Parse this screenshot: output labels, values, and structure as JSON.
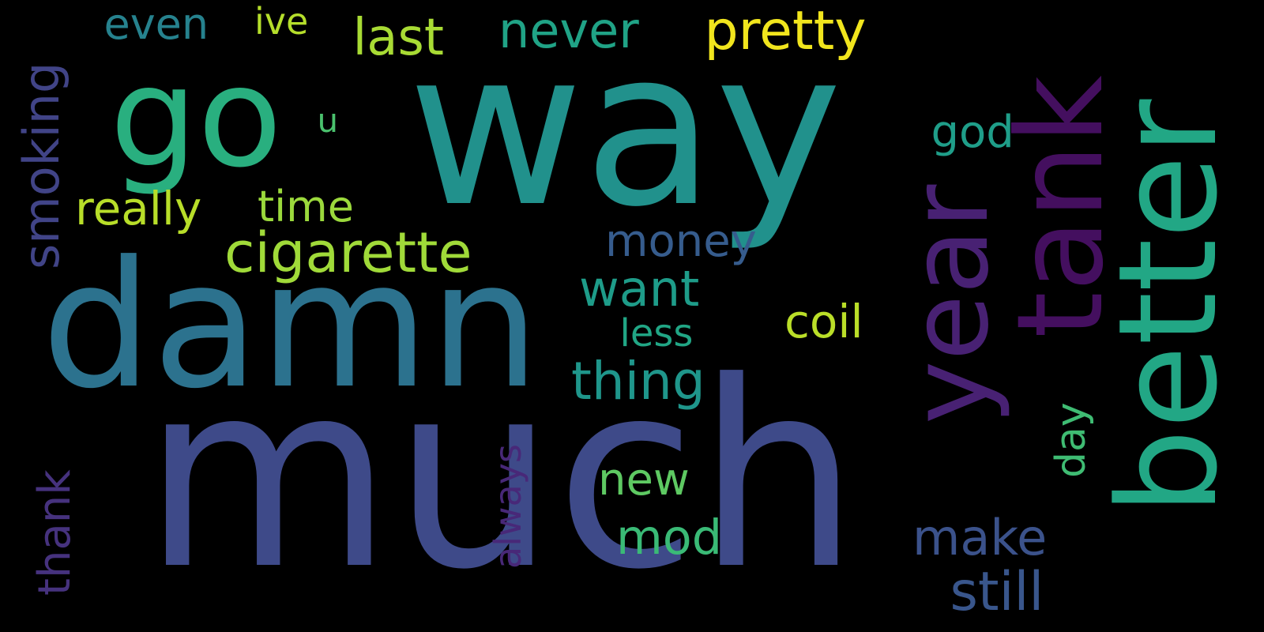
{
  "words": [
    {
      "text": "way",
      "color": "#21918c",
      "vertical": false
    },
    {
      "text": "much",
      "color": "#3e4a89",
      "vertical": false
    },
    {
      "text": "damn",
      "color": "#2c728e",
      "vertical": false
    },
    {
      "text": "go",
      "color": "#29af7f",
      "vertical": false
    },
    {
      "text": "better",
      "color": "#22a785",
      "vertical": true
    },
    {
      "text": "tank",
      "color": "#440f5f",
      "vertical": true
    },
    {
      "text": "year",
      "color": "#482173",
      "vertical": true
    },
    {
      "text": "cigarette",
      "color": "#a0da39",
      "vertical": false
    },
    {
      "text": "pretty",
      "color": "#f1e51d",
      "vertical": false
    },
    {
      "text": "never",
      "color": "#20a386",
      "vertical": false
    },
    {
      "text": "last",
      "color": "#a8db34",
      "vertical": false
    },
    {
      "text": "even",
      "color": "#26828e",
      "vertical": false
    },
    {
      "text": "ive",
      "color": "#b5de2b",
      "vertical": false
    },
    {
      "text": "smoking",
      "color": "#414487",
      "vertical": true
    },
    {
      "text": "u",
      "color": "#4ac16d",
      "vertical": false
    },
    {
      "text": "really",
      "color": "#b8de29",
      "vertical": false
    },
    {
      "text": "time",
      "color": "#9bd93c",
      "vertical": false
    },
    {
      "text": "god",
      "color": "#1f9e89",
      "vertical": false
    },
    {
      "text": "money",
      "color": "#365c8d",
      "vertical": false
    },
    {
      "text": "want",
      "color": "#1e9c89",
      "vertical": false
    },
    {
      "text": "coil",
      "color": "#bade28",
      "vertical": false
    },
    {
      "text": "less",
      "color": "#21a685",
      "vertical": false
    },
    {
      "text": "thing",
      "color": "#1f968b",
      "vertical": false
    },
    {
      "text": "thank",
      "color": "#46327e",
      "vertical": true
    },
    {
      "text": "always",
      "color": "#482878",
      "vertical": true
    },
    {
      "text": "new",
      "color": "#5ec962",
      "vertical": false
    },
    {
      "text": "day",
      "color": "#3fbc73",
      "vertical": true
    },
    {
      "text": "mod",
      "color": "#3aba76",
      "vertical": false
    },
    {
      "text": "make",
      "color": "#3b528b",
      "vertical": false
    },
    {
      "text": "still",
      "color": "#39568c",
      "vertical": false
    }
  ]
}
